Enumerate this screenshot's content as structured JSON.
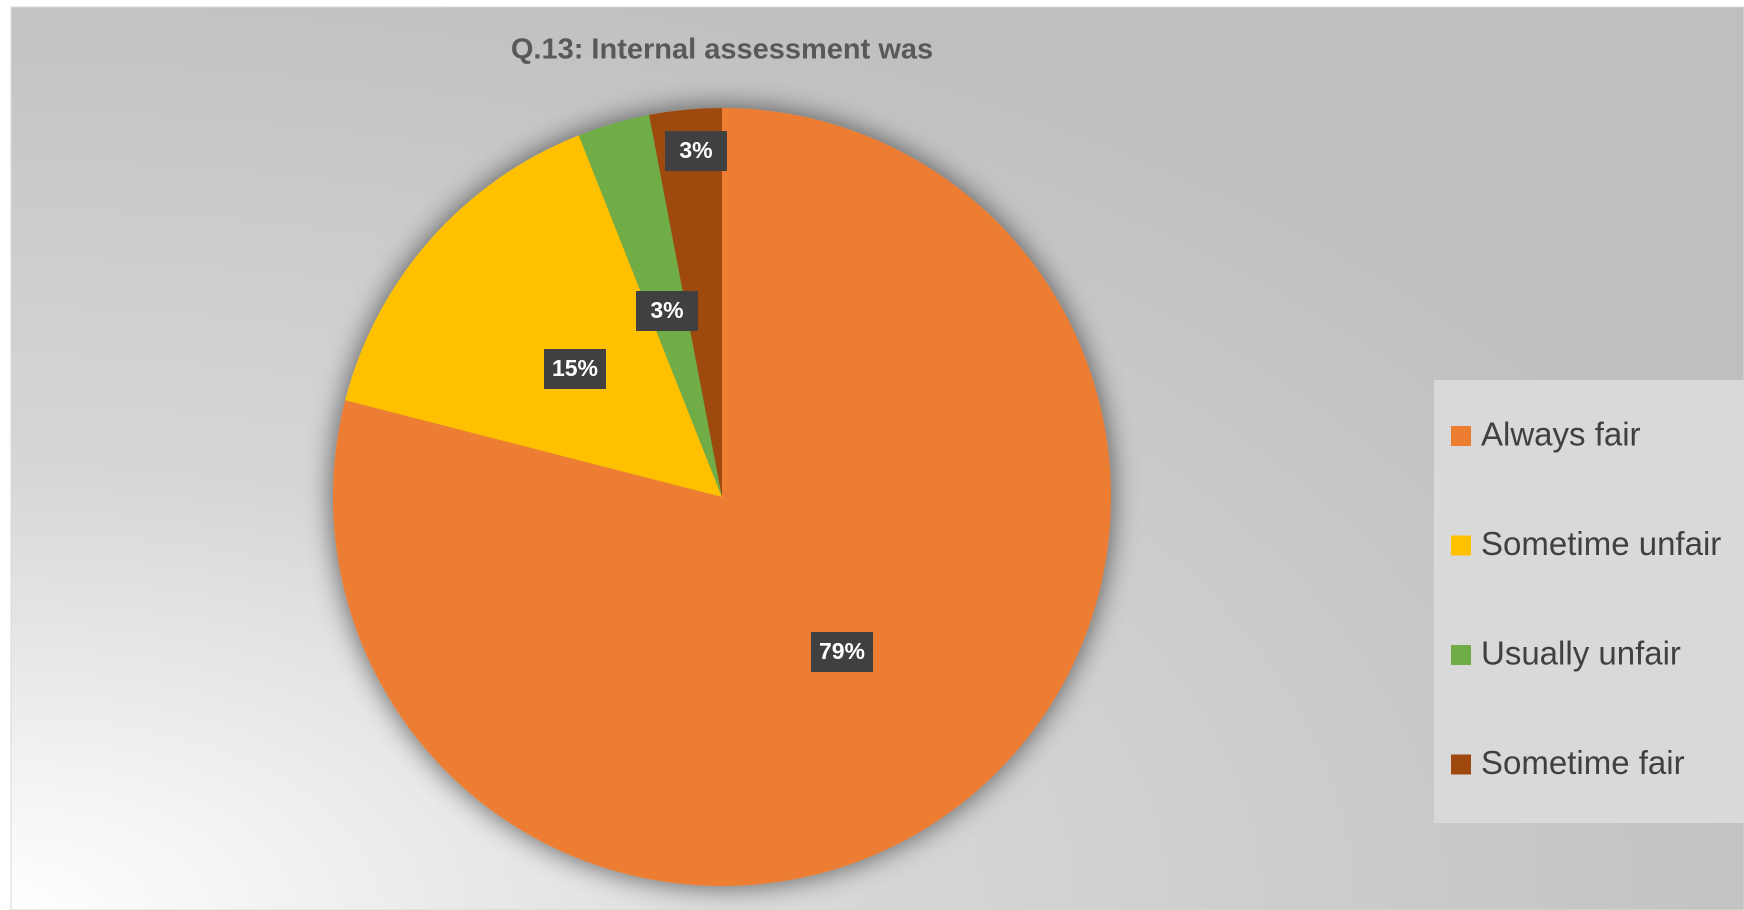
{
  "chart_data": {
    "type": "pie",
    "title": "Q.13: Internal assessment was",
    "categories": [
      "Always fair",
      "Sometime unfair",
      "Usually unfair",
      "Sometime fair"
    ],
    "values": [
      79,
      15,
      3,
      3
    ],
    "value_labels": [
      "79%",
      "15%",
      "3%",
      "3%"
    ],
    "colors": [
      "#ed7d31",
      "#ffc000",
      "#70ad47",
      "#9e480e"
    ],
    "legend": "right"
  }
}
